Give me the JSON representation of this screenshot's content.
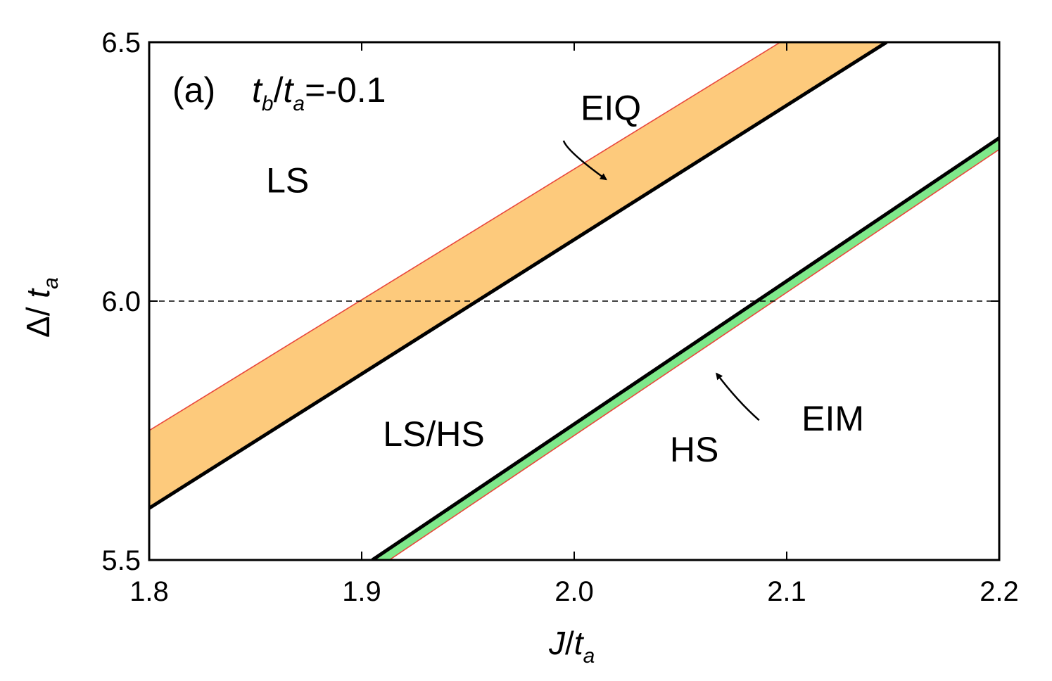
{
  "chart_data": {
    "type": "line",
    "panel_label": "(a)",
    "parameter": {
      "lhs_main": "t",
      "lhs_sub": "b",
      "sep": "/",
      "rhs_main": "t",
      "rhs_sub": "a",
      "value_text": "=-0.1"
    },
    "xlabel": {
      "main": "J",
      "sep": "/",
      "main2": "t",
      "sub": "a"
    },
    "ylabel": {
      "main": "Δ",
      "sep": "/ ",
      "main2": "t",
      "sub": "a"
    },
    "xlim": [
      1.8,
      2.2
    ],
    "ylim": [
      5.5,
      6.5
    ],
    "xticks": [
      "1.8",
      "1.9",
      "2.0",
      "2.1",
      "2.2"
    ],
    "yticks": [
      "5.5",
      "6.0",
      "6.5"
    ],
    "reference_line": {
      "y": 6.0,
      "style": "dashed"
    },
    "regions": [
      {
        "label": "LS",
        "x": 1.855,
        "y": 6.21
      },
      {
        "label": "LS/HS",
        "x": 1.91,
        "y": 5.72
      },
      {
        "label": "HS",
        "x": 2.045,
        "y": 5.69
      }
    ],
    "bands": [
      {
        "name": "EIQ",
        "fill": "#fdca7c",
        "upper": {
          "x": [
            1.8,
            2.097
          ],
          "y": [
            5.75,
            6.5
          ],
          "color": "#e8473c"
        },
        "lower": {
          "x": [
            1.8,
            2.147
          ],
          "y": [
            5.6,
            6.5
          ],
          "color": "#000000"
        }
      },
      {
        "name": "EIM",
        "fill": "#7fe88a",
        "upper": {
          "x": [
            1.905,
            2.2
          ],
          "y": [
            5.5,
            6.315
          ],
          "color": "#000000"
        },
        "lower": {
          "x": [
            1.913,
            2.2
          ],
          "y": [
            5.5,
            6.293
          ],
          "color": "#e8473c"
        }
      }
    ],
    "annotations": [
      {
        "text": "EIQ",
        "text_x": 2.003,
        "text_y": 6.35,
        "arrow_from": [
          1.995,
          6.31
        ],
        "arrow_to": [
          2.015,
          6.235
        ]
      },
      {
        "text": "EIM",
        "text_x": 2.107,
        "text_y": 5.75,
        "arrow_from": [
          2.087,
          5.77
        ],
        "arrow_to": [
          2.067,
          5.86
        ]
      }
    ],
    "colors": {
      "frame": "#000000",
      "eiq_fill": "#fdca7c",
      "eim_fill": "#7fe88a",
      "edge_red": "#e8473c"
    }
  }
}
